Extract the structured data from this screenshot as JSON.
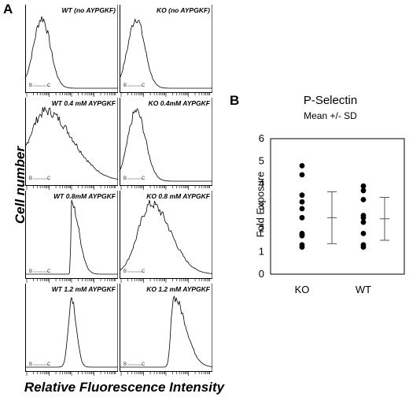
{
  "panel_a": {
    "letter": "A",
    "ylabel": "Cell number",
    "xlabel": "Relative Fluorescence Intensity",
    "panels": [
      {
        "label": "WT (no AYPGKF)",
        "peak": 0.18,
        "width": 0.09,
        "skew": 0.0,
        "gate_b": "B",
        "gate_c": "C"
      },
      {
        "label": "KO (no AYPGKF)",
        "peak": 0.18,
        "width": 0.09,
        "skew": 0.0,
        "gate_b": "B",
        "gate_c": "C"
      },
      {
        "label": "WT 0.4 mM AYPGKF",
        "peak": 0.22,
        "width": 0.18,
        "skew": 0.6,
        "gate_b": "B",
        "gate_c": "C"
      },
      {
        "label": "KO 0.4mM AYPGKF",
        "peak": 0.18,
        "width": 0.09,
        "skew": 0.1,
        "gate_b": "B",
        "gate_c": "C"
      },
      {
        "label": "WT 0.8mM AYPGKF",
        "peak": 0.5,
        "width": 0.08,
        "skew": -0.9,
        "gate_b": "B",
        "gate_c": "C"
      },
      {
        "label": "KO 0.8 mM AYPGKF",
        "peak": 0.34,
        "width": 0.14,
        "skew": 0.5,
        "gate_b": "B",
        "gate_c": "C"
      },
      {
        "label": "WT          1.2 mM AYPGKF",
        "peak": 0.5,
        "width": 0.05,
        "skew": -0.3,
        "gate_b": "B",
        "gate_c": "C"
      },
      {
        "label": "KO 1.2 mM AYPGKF",
        "peak": 0.58,
        "width": 0.13,
        "skew": -1.2,
        "gate_b": "B",
        "gate_c": "C"
      }
    ]
  },
  "chart_data": {
    "type": "scatter",
    "title": "P-Selectin",
    "subtitle": "Mean +/- SD",
    "xlabel": "",
    "ylabel": "Fold  Exposure",
    "ylim": [
      0,
      6
    ],
    "yticks": [
      "0",
      "1",
      "2",
      "3",
      "4",
      "5",
      "6"
    ],
    "categories": [
      "KO",
      "WT"
    ],
    "series": [
      {
        "category": "KO",
        "values": [
          4.8,
          4.4,
          3.5,
          3.2,
          2.9,
          2.5,
          1.8,
          1.75,
          1.7,
          1.3,
          1.2
        ]
      },
      {
        "category": "WT",
        "values": [
          3.9,
          3.7,
          3.3,
          2.6,
          2.5,
          2.3,
          1.8,
          1.3,
          1.2
        ]
      }
    ],
    "summary": [
      {
        "category": "KO",
        "mean": 2.5,
        "upper": 3.65,
        "lower": 1.35
      },
      {
        "category": "WT",
        "mean": 2.45,
        "upper": 3.4,
        "lower": 1.5
      }
    ],
    "grid": false
  },
  "panel_b": {
    "letter": "B"
  }
}
